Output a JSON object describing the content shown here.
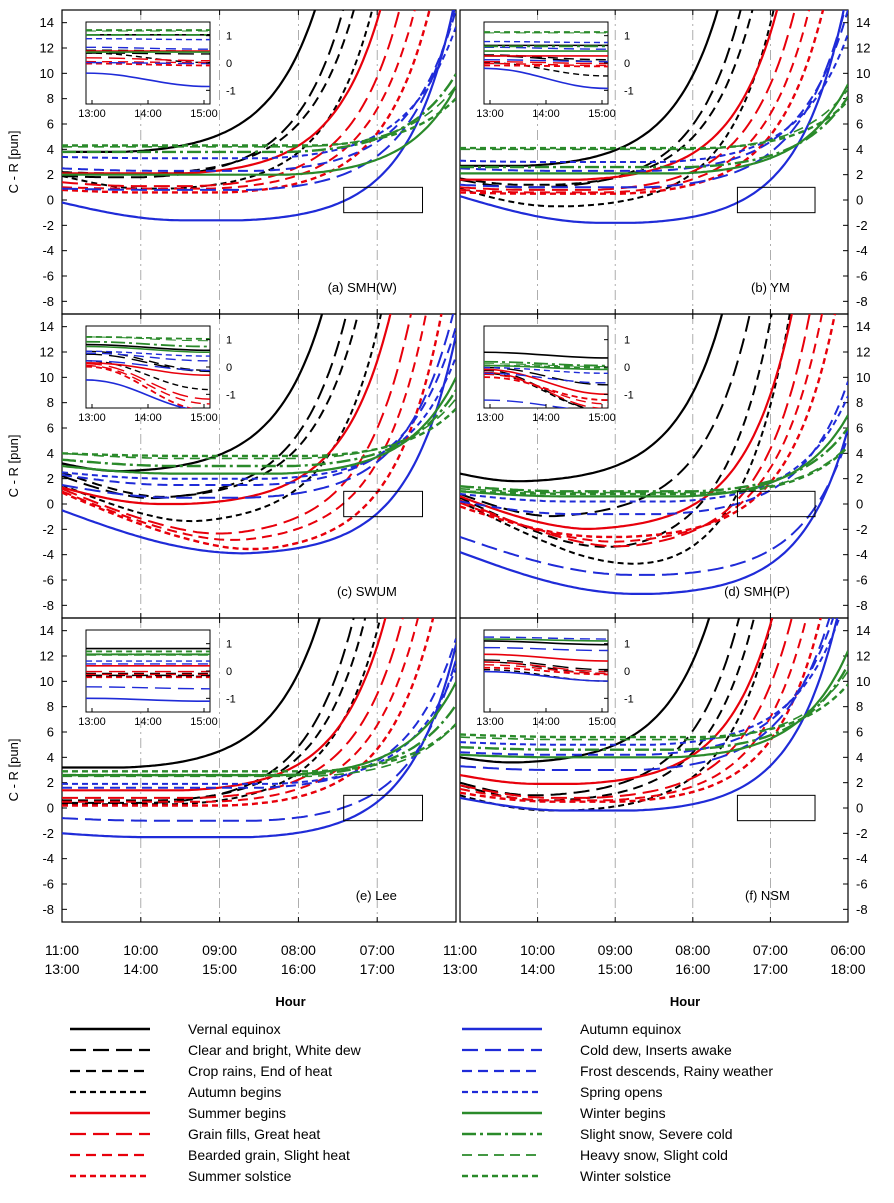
{
  "figure": {
    "ylabel": "C - R [pun]",
    "xlabel": "Hour",
    "x_ticks_top": [
      "11:00",
      "10:00",
      "09:00",
      "08:00",
      "07:00",
      "06:00"
    ],
    "x_ticks_bottom": [
      "13:00",
      "14:00",
      "15:00",
      "16:00",
      "17:00",
      "18:00"
    ],
    "y_ticks": [
      14,
      12,
      10,
      8,
      6,
      4,
      2,
      0,
      -2,
      -4,
      -6,
      -8
    ],
    "inset_x_ticks": [
      "13:00",
      "14:00",
      "15:00"
    ],
    "inset_y_ticks": [
      1,
      0,
      -1
    ]
  },
  "legend": [
    {
      "label": "Vernal equinox",
      "color": "#000000",
      "dash": "solid",
      "width": 2.2
    },
    {
      "label": "Clear and bright, White dew",
      "color": "#000000",
      "dash": "longdash",
      "width": 2
    },
    {
      "label": "Crop rains, End of heat",
      "color": "#000000",
      "dash": "dash",
      "width": 2
    },
    {
      "label": "Autumn begins",
      "color": "#000000",
      "dash": "shortdash",
      "width": 2
    },
    {
      "label": "Summer begins",
      "color": "#e8000b",
      "dash": "solid",
      "width": 2.2
    },
    {
      "label": "Grain fills, Great heat",
      "color": "#e8000b",
      "dash": "longdash",
      "width": 2
    },
    {
      "label": "Bearded grain, Slight heat",
      "color": "#e8000b",
      "dash": "dash",
      "width": 2
    },
    {
      "label": "Summer solstice",
      "color": "#e8000b",
      "dash": "shortdash",
      "width": 2.4
    },
    {
      "label": "Autumn equinox",
      "color": "#1f2bd8",
      "dash": "solid",
      "width": 2.2
    },
    {
      "label": "Cold dew, Inserts awake",
      "color": "#1f2bd8",
      "dash": "longdash",
      "width": 2
    },
    {
      "label": "Frost descends, Rainy weather",
      "color": "#1f2bd8",
      "dash": "dash",
      "width": 2
    },
    {
      "label": "Spring opens",
      "color": "#1f2bd8",
      "dash": "shortdash",
      "width": 2
    },
    {
      "label": "Winter begins",
      "color": "#2a8a2a",
      "dash": "solid",
      "width": 2.2
    },
    {
      "label": "Slight snow, Severe cold",
      "color": "#2a8a2a",
      "dash": "dashdot",
      "width": 2.4
    },
    {
      "label": "Heavy snow, Slight cold",
      "color": "#2a8a2a",
      "dash": "dash",
      "width": 1.6
    },
    {
      "label": "Winter solstice",
      "color": "#2a8a2a",
      "dash": "shortdash",
      "width": 2.4
    }
  ],
  "chart_data": [
    {
      "type": "line",
      "panel": "(a) SMH(W)",
      "ylim": [
        -9,
        15
      ],
      "x_range_hours_top": [
        11,
        6
      ],
      "x_range_hours_bottom": [
        13,
        18
      ],
      "series_start_values": [
        3.8,
        1.9,
        2.2,
        1.9,
        2.1,
        1.4,
        1.0,
        0.8,
        -0.2,
        0.9,
        2.5,
        3.4,
        2.0,
        3.8,
        4.2,
        4.3
      ],
      "series_minimum_values": [
        3.8,
        1.8,
        2.1,
        0.9,
        2.1,
        1.1,
        0.9,
        0.6,
        -1.6,
        0.8,
        2.3,
        3.3,
        2.0,
        3.8,
        4.2,
        4.3
      ]
    },
    {
      "type": "line",
      "panel": "(b) YM",
      "ylim": [
        -9,
        15
      ],
      "x_range_hours_top": [
        11,
        6
      ],
      "x_range_hours_bottom": [
        13,
        18
      ],
      "series_start_values": [
        2.7,
        1.6,
        1.7,
        0.9,
        1.6,
        1.0,
        0.8,
        0.6,
        0.3,
        1.2,
        2.5,
        3.1,
        2.1,
        2.6,
        4.0,
        4.1
      ],
      "series_minimum_values": [
        2.7,
        1.0,
        1.2,
        -0.5,
        1.6,
        0.8,
        0.6,
        0.5,
        -1.8,
        1.0,
        2.3,
        3.0,
        2.1,
        2.6,
        4.0,
        4.1
      ]
    },
    {
      "type": "line",
      "panel": "(c) SWUM",
      "ylim": [
        -9,
        15
      ],
      "x_range_hours_top": [
        11,
        6
      ],
      "x_range_hours_bottom": [
        13,
        18
      ],
      "series_start_values": [
        3.2,
        2.2,
        2.5,
        1.5,
        1.3,
        1.2,
        1.0,
        0.9,
        -0.5,
        1.5,
        2.3,
        2.5,
        3.0,
        3.5,
        4.0,
        4.0
      ],
      "series_minimum_values": [
        2.6,
        0.4,
        0.5,
        -1.5,
        0.0,
        -2.5,
        -3.0,
        -3.8,
        -3.9,
        0.5,
        1.5,
        2.0,
        2.4,
        3.0,
        3.6,
        3.8
      ]
    },
    {
      "type": "line",
      "panel": "(d) SMH(P)",
      "ylim": [
        -9,
        15
      ],
      "x_range_hours_top": [
        11,
        6
      ],
      "x_range_hours_bottom": [
        13,
        18
      ],
      "series_start_values": [
        2.4,
        0.8,
        0.5,
        0.2,
        0.6,
        0.3,
        0.1,
        -0.2,
        -3.8,
        -2.6,
        0.2,
        0.8,
        1.0,
        1.4,
        1.2,
        1.0
      ],
      "series_minimum_values": [
        1.8,
        -1.0,
        -4.0,
        -5.8,
        -2.0,
        -3.5,
        -3.0,
        -2.6,
        -7.1,
        -5.6,
        -0.8,
        0.2,
        0.6,
        1.0,
        0.9,
        0.8
      ]
    },
    {
      "type": "line",
      "panel": "(e) Lee",
      "ylim": [
        -9,
        15
      ],
      "x_range_hours_top": [
        11,
        6
      ],
      "x_range_hours_bottom": [
        13,
        18
      ],
      "series_start_values": [
        3.2,
        0.4,
        0.6,
        0.3,
        1.4,
        0.8,
        0.5,
        0.2,
        -2.0,
        -0.8,
        1.6,
        1.9,
        2.6,
        2.6,
        2.5,
        2.9
      ],
      "series_minimum_values": [
        3.2,
        0.4,
        0.6,
        0.3,
        1.4,
        0.8,
        0.5,
        0.2,
        -2.3,
        -1.0,
        1.6,
        1.9,
        2.6,
        2.6,
        2.5,
        2.9
      ]
    },
    {
      "type": "line",
      "panel": "(f) NSM",
      "ylim": [
        -9,
        15
      ],
      "x_range_hours_top": [
        11,
        6
      ],
      "x_range_hours_bottom": [
        13,
        18
      ],
      "series_start_values": [
        4.0,
        2.0,
        1.8,
        1.0,
        2.6,
        1.8,
        1.5,
        1.2,
        0.8,
        3.3,
        4.4,
        5.2,
        4.2,
        4.8,
        5.6,
        5.8
      ],
      "series_minimum_values": [
        3.6,
        1.0,
        0.6,
        -0.2,
        1.9,
        0.8,
        0.6,
        0.5,
        -0.2,
        3.0,
        4.2,
        5.0,
        4.0,
        4.6,
        5.4,
        5.6
      ]
    }
  ]
}
